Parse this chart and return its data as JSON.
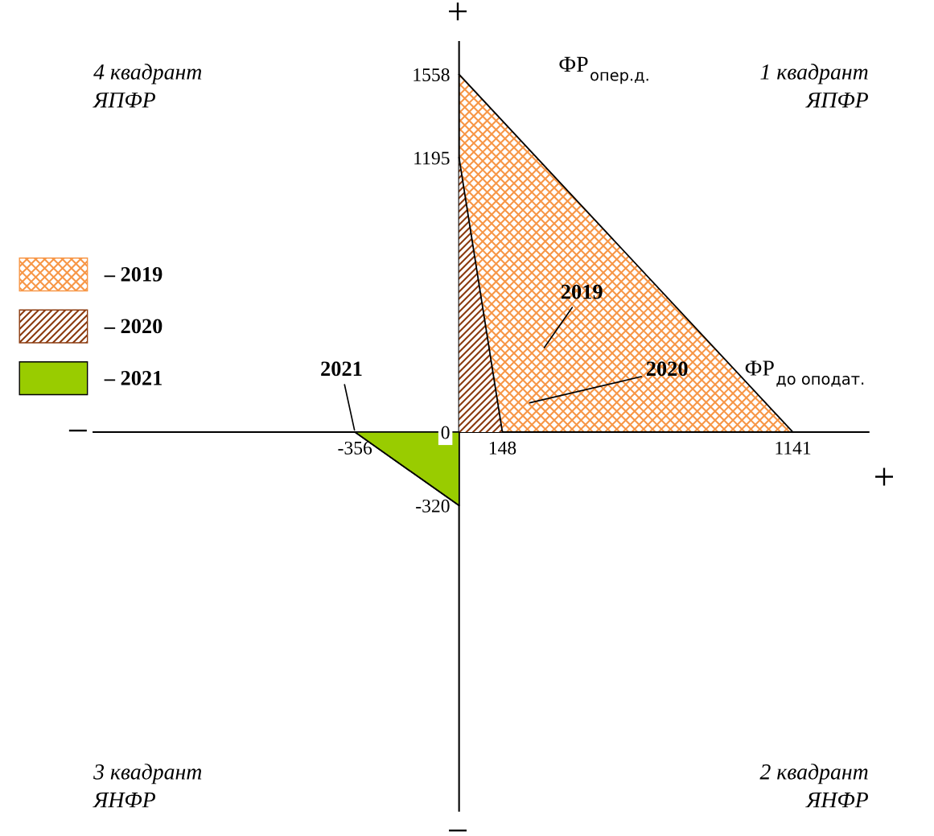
{
  "chart_data": {
    "type": "area",
    "xlabel": "ФР$_{до оподат.}$",
    "ylabel": "ФР$_{опер.д.}$",
    "series": [
      {
        "name": "– 2019",
        "color": "#f79646",
        "x": [
          0,
          1141
        ],
        "values": [
          1558,
          0
        ]
      },
      {
        "name": "– 2020",
        "color": "#8b3a0e",
        "x": [
          0,
          148
        ],
        "values": [
          1195,
          0
        ]
      },
      {
        "name": "– 2021",
        "color": "#99cc00",
        "x": [
          -356,
          0
        ],
        "values": [
          0,
          -320
        ]
      }
    ],
    "xlim": [
      -1250,
      1400
    ],
    "ylim": [
      -1650,
      1700
    ],
    "xticks": [
      -356,
      148,
      1141
    ],
    "yticks": [
      -320,
      0,
      1195,
      1558
    ],
    "legend": "left",
    "grid": false,
    "annotations": [
      "2019",
      "2020",
      {
        "text": "2021",
        "x": -356,
        "y": 0
      },
      "4 квадрант\nЯПФР",
      "1 квадрант\nЯПФР",
      "3 квадрант\nЯНФР",
      "2 квадрант\nЯНФР",
      "+",
      "+",
      "−",
      "−"
    ]
  }
}
